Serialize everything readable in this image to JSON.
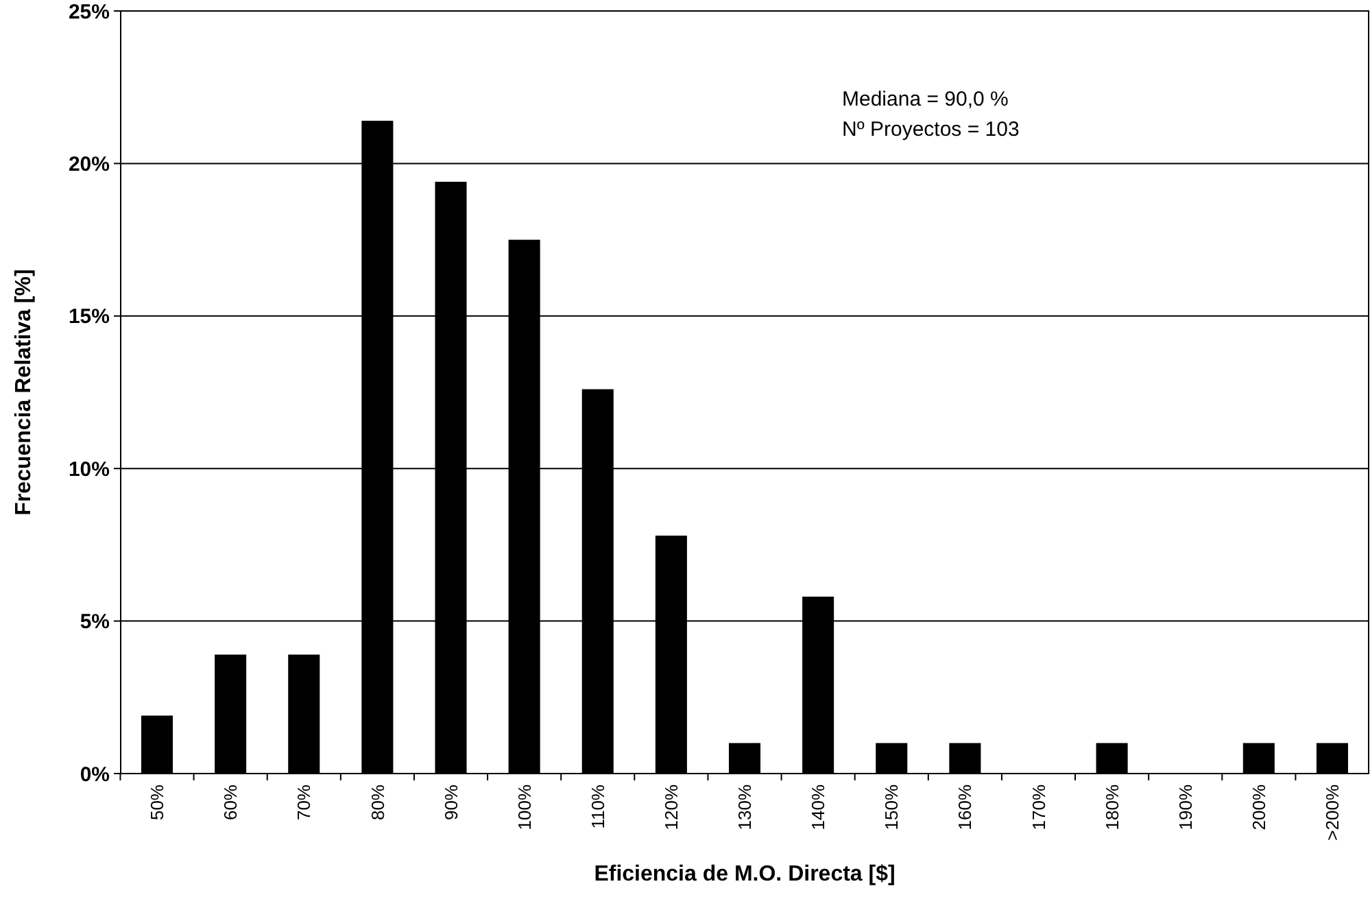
{
  "chart_data": {
    "type": "bar",
    "xlabel": "Eficiencia de M.O. Directa [$]",
    "ylabel": "Frecuencia Relativa [%]",
    "categories": [
      "50%",
      "60%",
      "70%",
      "80%",
      "90%",
      "100%",
      "110%",
      "120%",
      "130%",
      "140%",
      "150%",
      "160%",
      "170%",
      "180%",
      "190%",
      "200%",
      ">200%"
    ],
    "values": [
      1.9,
      3.9,
      3.9,
      21.4,
      19.4,
      17.5,
      12.6,
      7.8,
      1.0,
      5.8,
      1.0,
      1.0,
      0,
      1.0,
      0,
      1.0,
      1.0
    ],
    "color": "#000000",
    "ylim": [
      0,
      25
    ],
    "yticks": [
      {
        "value": 0,
        "label": "0%"
      },
      {
        "value": 5,
        "label": "5%"
      },
      {
        "value": 10,
        "label": "10%"
      },
      {
        "value": 15,
        "label": "15%"
      },
      {
        "value": 20,
        "label": "20%"
      },
      {
        "value": 25,
        "label": "25%"
      }
    ],
    "grid": "y",
    "annotations": [
      "Mediana = 90,0 %",
      "Nº Proyectos = 103"
    ]
  }
}
